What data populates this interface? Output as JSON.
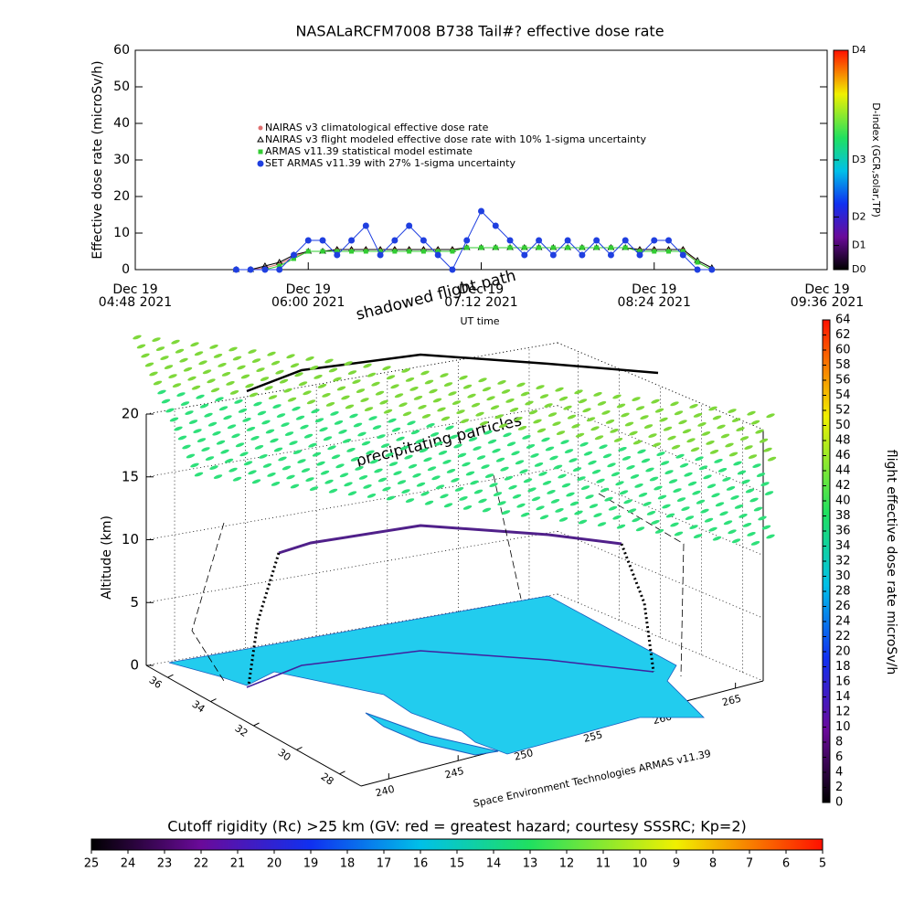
{
  "chart_data": [
    {
      "type": "timeseries",
      "title": "NASALaRCFM7008  B738 Tail#? effective dose rate",
      "xlabel": "UT time",
      "ylabel": "Effective dose rate (microSv/h)",
      "xlim": [
        "04:48",
        "09:36"
      ],
      "xticks": [
        {
          "value": "04:48",
          "label": [
            "Dec 19",
            "04:48 2021"
          ]
        },
        {
          "value": "06:00",
          "label": [
            "Dec 19",
            "06:00 2021"
          ]
        },
        {
          "value": "07:12",
          "label": [
            "Dec 19",
            "07:12 2021"
          ]
        },
        {
          "value": "08:24",
          "label": [
            "Dec 19",
            "08:24 2021"
          ]
        },
        {
          "value": "09:36",
          "label": [
            "Dec 19",
            "09:36 2021"
          ]
        }
      ],
      "ylim": [
        0,
        60
      ],
      "yticks": [
        0,
        10,
        20,
        30,
        40,
        50,
        60
      ],
      "x": [
        "05:30",
        "05:36",
        "05:42",
        "05:48",
        "05:54",
        "06:00",
        "06:06",
        "06:12",
        "06:18",
        "06:24",
        "06:30",
        "06:36",
        "06:42",
        "06:48",
        "06:54",
        "07:00",
        "07:06",
        "07:12",
        "07:18",
        "07:24",
        "07:30",
        "07:36",
        "07:42",
        "07:48",
        "07:54",
        "08:00",
        "08:06",
        "08:12",
        "08:18",
        "08:24",
        "08:30",
        "08:36",
        "08:42",
        "08:48"
      ],
      "series": [
        {
          "name": "NAIRAS v3 climatological effective dose rate",
          "color": "#e07070",
          "marker": "circle",
          "values": [
            0,
            0,
            0.5,
            1.5,
            3.5,
            5,
            5,
            5.5,
            5.5,
            5.5,
            5.5,
            5.5,
            5.5,
            5.5,
            5.5,
            5.5,
            6,
            6,
            6,
            6,
            6,
            6,
            6,
            6,
            6,
            6,
            6,
            6,
            5.5,
            5.5,
            5.5,
            5.5,
            2,
            0
          ]
        },
        {
          "name": "NAIRAS v3 flight modeled effective dose rate with 10% 1-sigma uncertainty",
          "color": "#000000",
          "marker": "triangle",
          "values": [
            0,
            0,
            1,
            2,
            4,
            5,
            5,
            5.5,
            5.5,
            5.5,
            5.5,
            5.5,
            5.5,
            5.5,
            5.5,
            5.5,
            6,
            6,
            6,
            6,
            6,
            6,
            6,
            6,
            6,
            6,
            6,
            6,
            5.5,
            5.5,
            5.5,
            5.5,
            2.5,
            0.5
          ]
        },
        {
          "name": "ARMAS v11.39 statistical model estimate",
          "color": "#33cc33",
          "marker": "square",
          "values": [
            0,
            0,
            0,
            1,
            3,
            5,
            5,
            5,
            5,
            5,
            5,
            5,
            5,
            5,
            5,
            5,
            6,
            6,
            6,
            6,
            6,
            6,
            6,
            6,
            6,
            6,
            6,
            6,
            5,
            5,
            5,
            5,
            2,
            0
          ]
        },
        {
          "name": "SET ARMAS v11.39 with 27% 1-sigma uncertainty",
          "color": "#1f3fe0",
          "marker": "dot",
          "values": [
            0,
            0,
            0,
            0,
            4,
            8,
            8,
            4,
            8,
            12,
            4,
            8,
            12,
            8,
            4,
            0,
            8,
            16,
            12,
            8,
            4,
            8,
            4,
            8,
            4,
            8,
            4,
            8,
            4,
            8,
            8,
            4,
            0,
            0
          ]
        }
      ],
      "colorbar": {
        "label": "D-index (GCR,solar,TP)",
        "lim": [
          0,
          1
        ],
        "ticks": [
          {
            "value": 0,
            "label": "D0"
          },
          {
            "value": 0.11,
            "label": "D1"
          },
          {
            "value": 0.24,
            "label": "D2"
          },
          {
            "value": 0.5,
            "label": "D3"
          },
          {
            "value": 1,
            "label": "D4"
          }
        ]
      }
    },
    {
      "type": "3d",
      "zlabel": "Altitude (km)",
      "annotations": [
        "shadowed flight path",
        "precipitating particles"
      ],
      "credit": "Space Environment Technologies ARMAS v11.39",
      "xlim": [
        238,
        267
      ],
      "xticks": [
        240,
        245,
        250,
        255,
        260,
        265
      ],
      "ylim": [
        27,
        37
      ],
      "yticks": [
        28,
        30,
        32,
        34,
        36
      ],
      "zlim": [
        0,
        20
      ],
      "zticks": [
        0,
        5,
        10,
        15,
        20
      ],
      "colorbar": {
        "label": "flight effective dose rate microSv/h",
        "lim": [
          0,
          64
        ],
        "ticks": [
          0,
          2,
          4,
          6,
          8,
          10,
          12,
          14,
          16,
          18,
          20,
          22,
          24,
          26,
          28,
          30,
          32,
          34,
          36,
          38,
          40,
          42,
          44,
          46,
          48,
          50,
          52,
          54,
          56,
          58,
          60,
          62,
          64
        ]
      },
      "colorbar2": {
        "label": "Cutoff rigidity (Rc) >25 km (GV: red = greatest hazard; courtesy SSSRC; Kp=2)",
        "lim": [
          25,
          5
        ],
        "ticks": [
          25,
          24,
          23,
          22,
          21,
          20,
          19,
          18,
          17,
          16,
          15,
          14,
          13,
          12,
          11,
          10,
          9,
          8,
          7,
          6,
          5
        ]
      }
    }
  ]
}
